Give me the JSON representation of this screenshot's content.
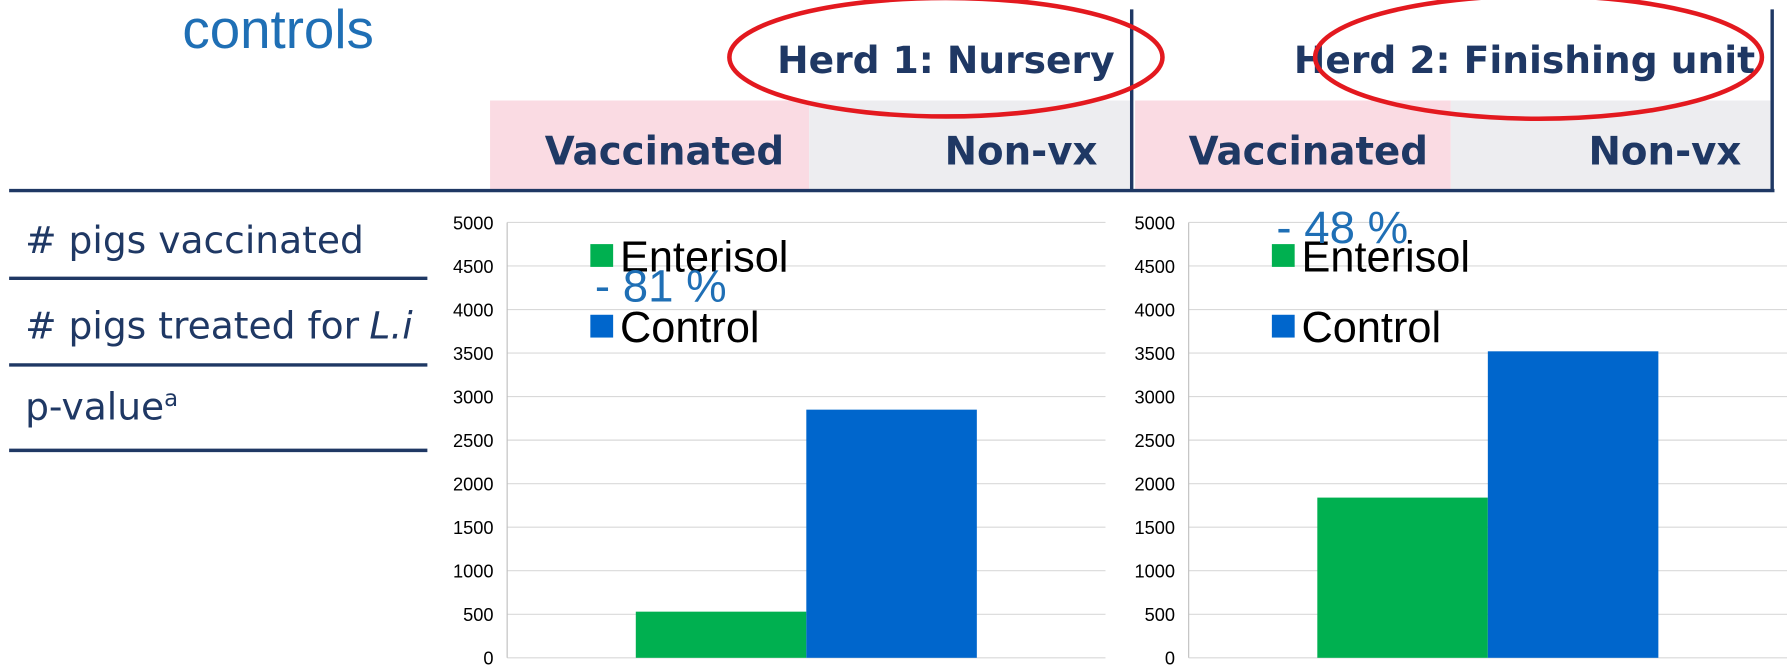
{
  "heading": "controls",
  "table": {
    "herds": [
      "Herd 1: Nursery",
      "Herd 2: Finishing unit"
    ],
    "columns": [
      "Vaccinated",
      "Non-vx",
      "Vaccinated",
      "Non-vx"
    ],
    "rows": [
      {
        "label": "# pigs vaccinated"
      },
      {
        "label": "# pigs treated for",
        "label_italic": "L.i"
      },
      {
        "label": "p-value",
        "superscript": "a"
      }
    ]
  },
  "chart_data": [
    {
      "type": "bar",
      "categories": [
        null
      ],
      "series": [
        {
          "name": "Enterisol",
          "color": "#00B050",
          "values": [
            530
          ]
        },
        {
          "name": "Control",
          "color": "#0066CC",
          "values": [
            2850
          ]
        }
      ],
      "annotation": "- 81 %",
      "ylim": [
        0,
        5000
      ],
      "yticks": [
        0,
        500,
        1000,
        1500,
        2000,
        2500,
        3000,
        3500,
        4000,
        4500,
        5000
      ],
      "grid": true,
      "legend": "top-left"
    },
    {
      "type": "bar",
      "categories": [
        null
      ],
      "series": [
        {
          "name": "Enterisol",
          "color": "#00B050",
          "values": [
            1840
          ]
        },
        {
          "name": "Control",
          "color": "#0066CC",
          "values": [
            3520
          ]
        }
      ],
      "annotation": "- 48 %",
      "ylim": [
        0,
        5000
      ],
      "yticks": [
        0,
        500,
        1000,
        1500,
        2000,
        2500,
        3000,
        3500,
        4000,
        4500,
        5000
      ],
      "grid": true,
      "legend": "top-left"
    }
  ]
}
